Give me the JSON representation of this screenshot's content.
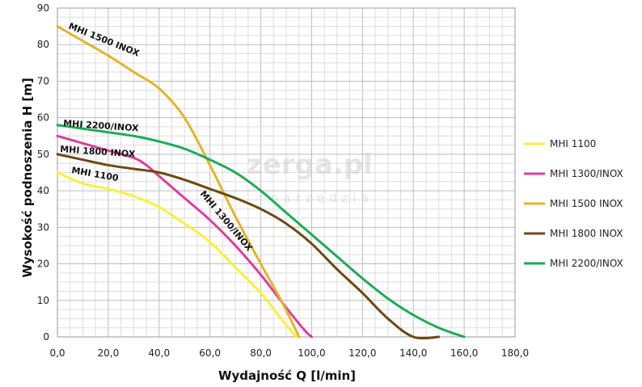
{
  "chart_data": {
    "type": "line",
    "xlabel": "Wydajność Q [l/min]",
    "ylabel": "Wysokość podnoszenia H [m]",
    "xlim": [
      0,
      180
    ],
    "ylim": [
      0,
      90
    ],
    "xticks": [
      "0,0",
      "20,0",
      "40,0",
      "60,0",
      "80,0",
      "100,0",
      "120,0",
      "140,0",
      "160,0",
      "180,0"
    ],
    "yticks": [
      "0",
      "10",
      "20",
      "30",
      "40",
      "50",
      "60",
      "70",
      "80",
      "90"
    ],
    "grid": true,
    "legend_position": "right",
    "series": [
      {
        "name": "MHI 1100",
        "color": "#f7f23a",
        "points": [
          [
            0,
            45
          ],
          [
            10,
            42
          ],
          [
            20,
            40.5
          ],
          [
            30,
            38.5
          ],
          [
            40,
            35.5
          ],
          [
            50,
            31
          ],
          [
            60,
            26
          ],
          [
            70,
            19
          ],
          [
            80,
            12
          ],
          [
            88,
            5
          ],
          [
            94,
            0
          ]
        ]
      },
      {
        "name": "MHI 1300/INOX",
        "color": "#d9409a",
        "points": [
          [
            0,
            55
          ],
          [
            10,
            53
          ],
          [
            20,
            51
          ],
          [
            30,
            49
          ],
          [
            35,
            47
          ],
          [
            40,
            44
          ],
          [
            50,
            38
          ],
          [
            60,
            32
          ],
          [
            70,
            25
          ],
          [
            80,
            17
          ],
          [
            90,
            8
          ],
          [
            97,
            2
          ],
          [
            100,
            0
          ]
        ]
      },
      {
        "name": "MHI 1500 INOX",
        "color": "#e2b52c",
        "points": [
          [
            0,
            85
          ],
          [
            10,
            81
          ],
          [
            20,
            77
          ],
          [
            30,
            72.5
          ],
          [
            40,
            68
          ],
          [
            50,
            60
          ],
          [
            60,
            47
          ],
          [
            70,
            33
          ],
          [
            80,
            20
          ],
          [
            88,
            10
          ],
          [
            93,
            3
          ],
          [
            95,
            0
          ]
        ]
      },
      {
        "name": "MHI 1800 INOX",
        "color": "#6b4a10",
        "points": [
          [
            0,
            50
          ],
          [
            10,
            48.5
          ],
          [
            20,
            47
          ],
          [
            30,
            46
          ],
          [
            40,
            45
          ],
          [
            50,
            43
          ],
          [
            60,
            40.5
          ],
          [
            70,
            38
          ],
          [
            80,
            35
          ],
          [
            90,
            31
          ],
          [
            100,
            25.5
          ],
          [
            110,
            18.5
          ],
          [
            120,
            12
          ],
          [
            130,
            5
          ],
          [
            140,
            -2
          ],
          [
            150,
            0
          ]
        ]
      },
      {
        "name": "MHI 2200/INOX",
        "color": "#1faa59",
        "points": [
          [
            0,
            58
          ],
          [
            10,
            57
          ],
          [
            20,
            56
          ],
          [
            30,
            55
          ],
          [
            40,
            53.5
          ],
          [
            50,
            51.5
          ],
          [
            60,
            48.5
          ],
          [
            70,
            45
          ],
          [
            80,
            40
          ],
          [
            90,
            34
          ],
          [
            100,
            28
          ],
          [
            110,
            22
          ],
          [
            120,
            16
          ],
          [
            130,
            10.5
          ],
          [
            140,
            6
          ],
          [
            150,
            2.5
          ],
          [
            160,
            0
          ]
        ]
      }
    ],
    "curve_labels": [
      {
        "series": "MHI 1500 INOX",
        "text": "MHI 1500 INOX"
      },
      {
        "series": "MHI 2200/INOX",
        "text": "MHI 2200/INOX"
      },
      {
        "series": "MHI 1800 INOX",
        "text": "MHI 1800 INOX"
      },
      {
        "series": "MHI 1100",
        "text": "MHI 1100"
      },
      {
        "series": "MHI 1300/INOX",
        "text": "MHI 1300/INOX"
      }
    ]
  },
  "watermark": {
    "main": "zerga.pl",
    "sub": "narzędzia"
  }
}
